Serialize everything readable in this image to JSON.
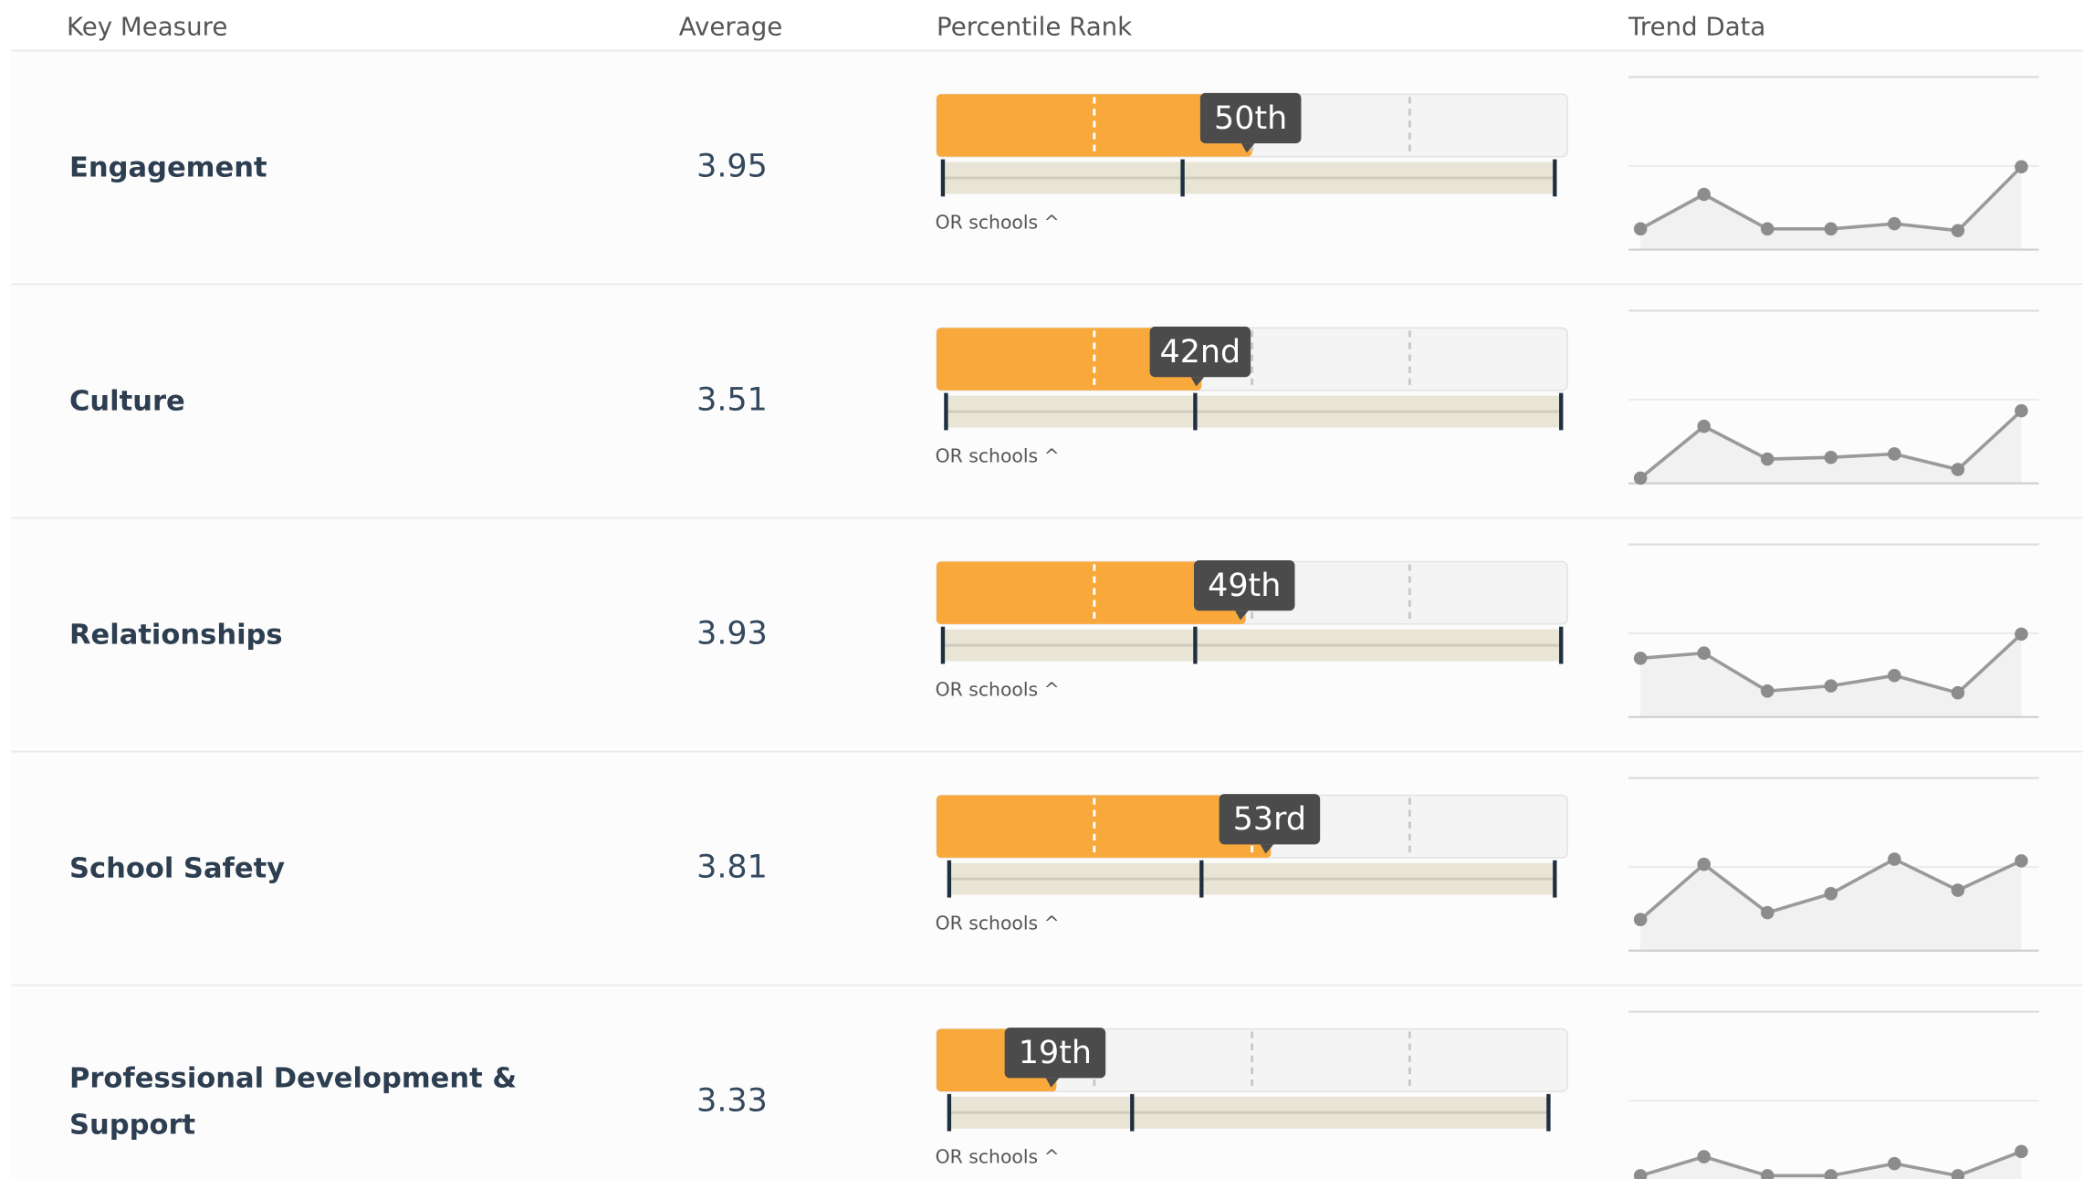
{
  "header": {
    "measure": "Key Measure",
    "average": "Average",
    "percentile": "Percentile Rank",
    "trend": "Trend Data"
  },
  "percentile_range": [
    0,
    100
  ],
  "percentile_guides": [
    25,
    50,
    75
  ],
  "trend_ylim": [
    0,
    100
  ],
  "rows": [
    {
      "measure": "Engagement",
      "average": "3.95",
      "percentile": {
        "value": 50,
        "label": "50th"
      },
      "distribution": [
        1,
        39,
        98
      ],
      "note": "OR schools ^",
      "trend": [
        12,
        32,
        12,
        12,
        15,
        11,
        48
      ]
    },
    {
      "measure": "Culture",
      "average": "3.51",
      "percentile": {
        "value": 42,
        "label": "42nd"
      },
      "distribution": [
        1.5,
        41,
        99
      ],
      "note": "OR schools ^",
      "trend": [
        3,
        33,
        14,
        15,
        17,
        8,
        42
      ]
    },
    {
      "measure": "Relationships",
      "average": "3.93",
      "percentile": {
        "value": 49,
        "label": "49th"
      },
      "distribution": [
        1,
        41,
        99
      ],
      "note": "OR schools ^",
      "trend": [
        34,
        37,
        15,
        18,
        24,
        14,
        48
      ]
    },
    {
      "measure": "School Safety",
      "average": "3.81",
      "percentile": {
        "value": 53,
        "label": "53rd"
      },
      "distribution": [
        2,
        42,
        98
      ],
      "note": "OR schools ^",
      "trend": [
        18,
        50,
        22,
        33,
        53,
        35,
        52
      ]
    },
    {
      "measure": "Professional Development & Support",
      "average": "3.33",
      "percentile": {
        "value": 19,
        "label": "19th"
      },
      "distribution": [
        2,
        31,
        97
      ],
      "note": "OR schools ^",
      "trend": [
        5,
        16,
        5,
        5,
        12,
        5,
        19
      ]
    }
  ]
}
